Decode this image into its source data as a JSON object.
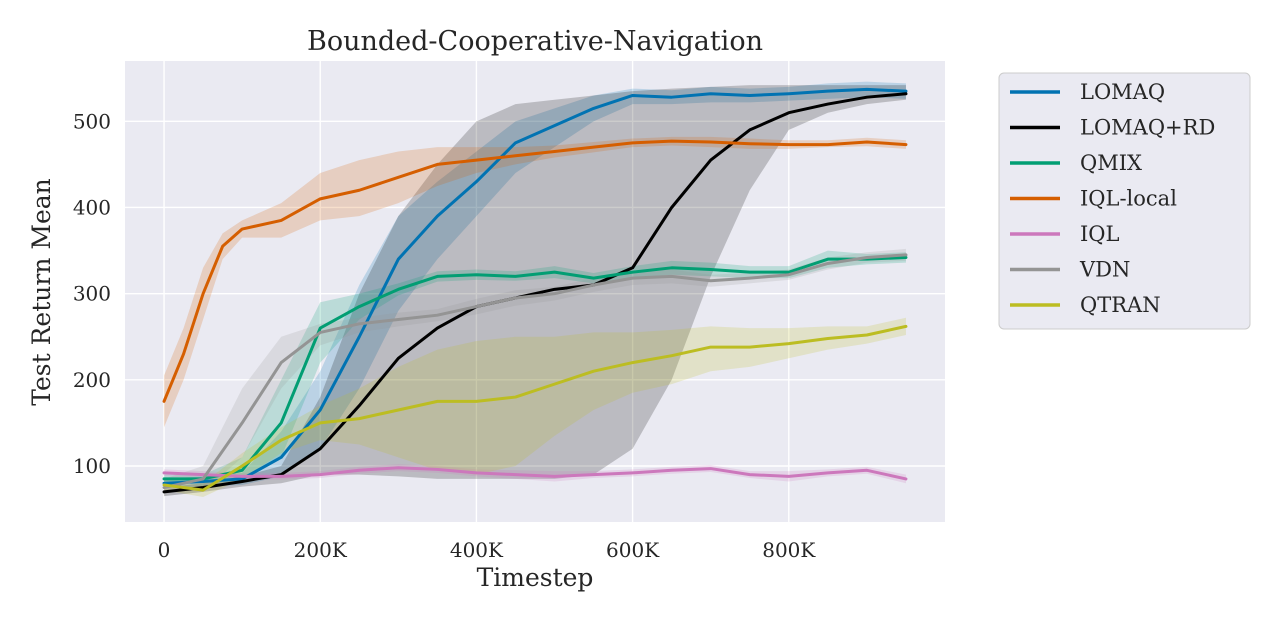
{
  "chart_data": {
    "type": "line",
    "title": "Bounded-Cooperative-Navigation",
    "xlabel": "Timestep",
    "ylabel": "Test Return Mean",
    "xlim": [
      -50000,
      1000000
    ],
    "ylim": [
      35,
      570
    ],
    "x_ticks": [
      0,
      200000,
      400000,
      600000,
      800000
    ],
    "x_tick_labels": [
      "0",
      "200K",
      "400K",
      "600K",
      "800K"
    ],
    "y_ticks": [
      100,
      200,
      300,
      400,
      500
    ],
    "y_tick_labels": [
      "100",
      "200",
      "300",
      "400",
      "500"
    ],
    "grid": true,
    "legend_position": "outside-right",
    "background_color": "#eaeaf2",
    "series": [
      {
        "name": "LOMAQ",
        "color": "#0173b2",
        "x": [
          0,
          50000,
          100000,
          150000,
          200000,
          250000,
          300000,
          350000,
          400000,
          450000,
          500000,
          550000,
          600000,
          650000,
          700000,
          750000,
          800000,
          850000,
          900000,
          950000
        ],
        "y": [
          80,
          82,
          85,
          110,
          165,
          250,
          340,
          390,
          430,
          475,
          495,
          515,
          530,
          528,
          532,
          530,
          532,
          535,
          537,
          535
        ],
        "lower": [
          75,
          76,
          78,
          88,
          120,
          190,
          280,
          340,
          390,
          440,
          470,
          500,
          520,
          520,
          522,
          522,
          524,
          526,
          528,
          526
        ],
        "upper": [
          85,
          88,
          92,
          140,
          210,
          310,
          390,
          430,
          465,
          500,
          515,
          530,
          538,
          536,
          540,
          538,
          540,
          544,
          546,
          544
        ]
      },
      {
        "name": "LOMAQ+RD",
        "color": "#000000",
        "x": [
          0,
          50000,
          100000,
          150000,
          200000,
          250000,
          300000,
          350000,
          400000,
          450000,
          500000,
          550000,
          600000,
          650000,
          700000,
          750000,
          800000,
          850000,
          900000,
          950000
        ],
        "y": [
          70,
          75,
          82,
          90,
          120,
          170,
          225,
          260,
          285,
          295,
          305,
          310,
          330,
          400,
          455,
          490,
          510,
          520,
          528,
          532
        ],
        "lower": [
          65,
          70,
          76,
          80,
          90,
          90,
          88,
          85,
          85,
          85,
          85,
          90,
          120,
          200,
          320,
          420,
          490,
          510,
          520,
          525
        ],
        "upper": [
          75,
          80,
          88,
          100,
          180,
          300,
          390,
          450,
          500,
          520,
          525,
          530,
          535,
          538,
          540,
          542,
          542,
          542,
          542,
          542
        ]
      },
      {
        "name": "QMIX",
        "color": "#029e73",
        "x": [
          0,
          50000,
          100000,
          150000,
          200000,
          250000,
          300000,
          350000,
          400000,
          450000,
          500000,
          550000,
          600000,
          650000,
          700000,
          750000,
          800000,
          850000,
          900000,
          950000
        ],
        "y": [
          85,
          85,
          95,
          150,
          260,
          285,
          305,
          320,
          322,
          320,
          325,
          318,
          325,
          330,
          328,
          325,
          325,
          340,
          340,
          342
        ],
        "lower": [
          80,
          80,
          85,
          110,
          220,
          270,
          298,
          314,
          316,
          315,
          318,
          312,
          318,
          322,
          320,
          318,
          318,
          330,
          334,
          336
        ],
        "upper": [
          90,
          90,
          110,
          200,
          290,
          300,
          312,
          326,
          328,
          326,
          332,
          324,
          332,
          338,
          336,
          332,
          332,
          350,
          346,
          348
        ]
      },
      {
        "name": "IQL-local",
        "color": "#d55e00",
        "x": [
          0,
          25000,
          50000,
          75000,
          100000,
          150000,
          200000,
          250000,
          300000,
          350000,
          400000,
          450000,
          500000,
          550000,
          600000,
          650000,
          700000,
          750000,
          800000,
          850000,
          900000,
          950000
        ],
        "y": [
          175,
          230,
          300,
          355,
          375,
          385,
          410,
          420,
          435,
          450,
          455,
          460,
          465,
          470,
          475,
          477,
          476,
          474,
          473,
          473,
          476,
          473
        ],
        "lower": [
          145,
          200,
          270,
          340,
          365,
          365,
          385,
          390,
          405,
          425,
          440,
          450,
          458,
          464,
          470,
          472,
          470,
          468,
          468,
          470,
          471,
          468
        ],
        "upper": [
          205,
          260,
          330,
          370,
          385,
          405,
          440,
          455,
          465,
          470,
          470,
          470,
          472,
          476,
          480,
          482,
          482,
          480,
          478,
          478,
          481,
          478
        ]
      },
      {
        "name": "IQL",
        "color": "#cc78bc",
        "x": [
          0,
          50000,
          100000,
          150000,
          200000,
          250000,
          300000,
          350000,
          400000,
          450000,
          500000,
          550000,
          600000,
          650000,
          700000,
          750000,
          800000,
          850000,
          900000,
          950000
        ],
        "y": [
          92,
          90,
          88,
          88,
          90,
          95,
          98,
          96,
          92,
          90,
          88,
          90,
          92,
          95,
          97,
          90,
          88,
          92,
          95,
          85
        ],
        "lower": [
          88,
          86,
          84,
          84,
          86,
          91,
          94,
          92,
          88,
          85,
          82,
          86,
          88,
          91,
          93,
          86,
          82,
          88,
          91,
          80
        ],
        "upper": [
          96,
          94,
          92,
          92,
          94,
          99,
          102,
          100,
          96,
          95,
          94,
          94,
          96,
          99,
          101,
          94,
          94,
          96,
          99,
          90
        ]
      },
      {
        "name": "VDN",
        "color": "#949494",
        "x": [
          0,
          50000,
          100000,
          150000,
          200000,
          250000,
          300000,
          350000,
          400000,
          450000,
          500000,
          550000,
          600000,
          650000,
          700000,
          750000,
          800000,
          850000,
          900000,
          950000
        ],
        "y": [
          75,
          85,
          150,
          220,
          255,
          265,
          270,
          275,
          285,
          295,
          300,
          310,
          318,
          320,
          315,
          318,
          322,
          335,
          342,
          345
        ],
        "lower": [
          65,
          70,
          110,
          190,
          240,
          255,
          262,
          268,
          276,
          286,
          292,
          302,
          310,
          312,
          308,
          312,
          316,
          328,
          336,
          338
        ],
        "upper": [
          85,
          100,
          190,
          250,
          265,
          272,
          278,
          282,
          294,
          304,
          308,
          318,
          326,
          328,
          322,
          324,
          328,
          342,
          348,
          352
        ]
      },
      {
        "name": "QTRAN",
        "color": "#bcbd22",
        "x": [
          0,
          50000,
          100000,
          150000,
          200000,
          250000,
          300000,
          350000,
          400000,
          450000,
          500000,
          550000,
          600000,
          650000,
          700000,
          750000,
          800000,
          850000,
          900000,
          950000
        ],
        "y": [
          78,
          72,
          100,
          130,
          150,
          155,
          165,
          175,
          175,
          180,
          195,
          210,
          220,
          228,
          238,
          238,
          242,
          248,
          252,
          262
        ],
        "lower": [
          72,
          64,
          85,
          115,
          130,
          125,
          110,
          95,
          90,
          100,
          135,
          165,
          185,
          195,
          210,
          215,
          225,
          235,
          242,
          252
        ],
        "upper": [
          84,
          80,
          115,
          145,
          170,
          190,
          215,
          235,
          245,
          250,
          250,
          255,
          255,
          258,
          262,
          260,
          260,
          262,
          262,
          272
        ]
      }
    ]
  }
}
